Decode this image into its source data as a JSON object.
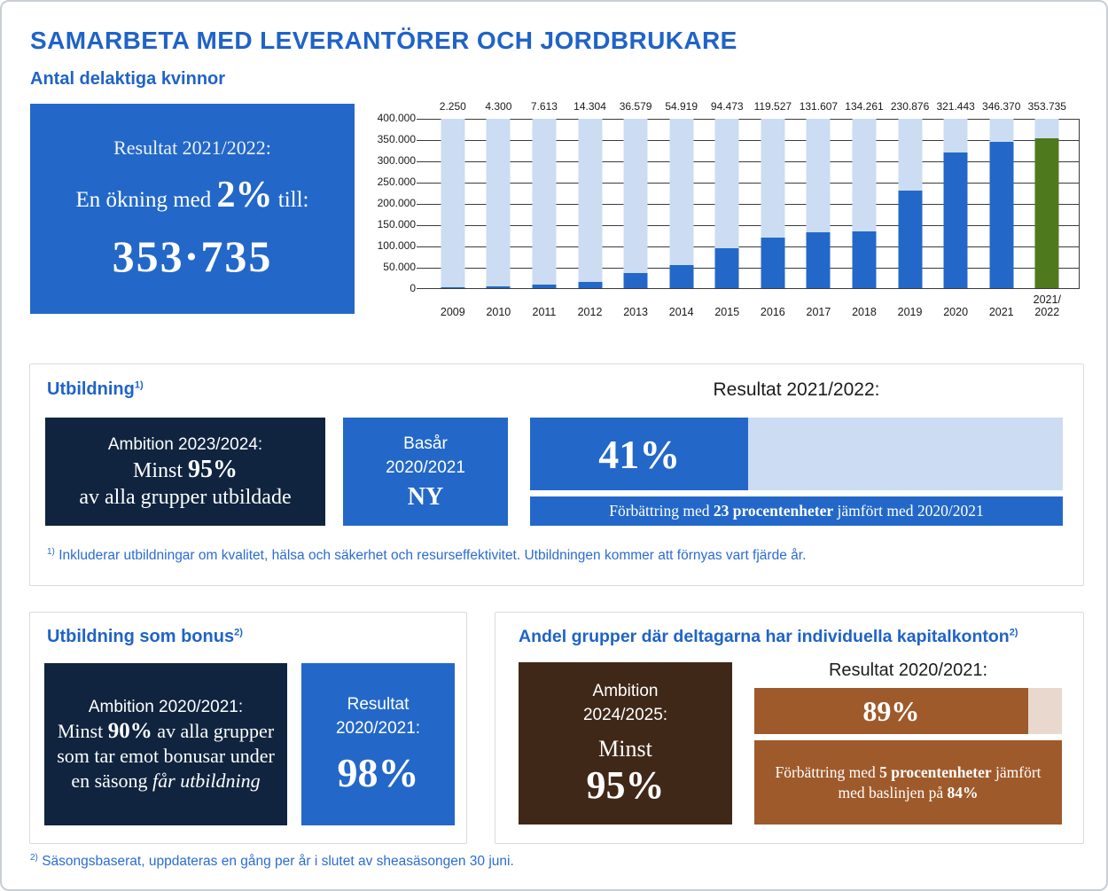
{
  "page": {
    "title": "SAMARBETA MED LEVERANTÖRER OCH JORDBRUKARE",
    "subtitle": "Antal delaktiga kvinnor",
    "footnote2_marker": "2)",
    "footnote2": "Säsongsbaserat, uppdateras en gång per år i slutet av sheasäsongen 30 juni."
  },
  "colors": {
    "primary_blue": "#2368C8",
    "light_blue": "#CBDCF3",
    "navy": "#10243F",
    "green": "#4E7A1D",
    "dark_brown": "#402818",
    "rust_brown": "#9F5A2B",
    "light_pink": "#E8D8CE",
    "heading_blue": "#1F63C8"
  },
  "kpi_box": {
    "line1": "Resultat 2021/2022:",
    "line2_pre": "En ökning med ",
    "line2_value": "2%",
    "line2_post": " till:",
    "total": "353·735"
  },
  "chart_data": {
    "type": "bar",
    "title": "Antal delaktiga kvinnor",
    "categories": [
      "2009",
      "2010",
      "2011",
      "2012",
      "2013",
      "2014",
      "2015",
      "2016",
      "2017",
      "2018",
      "2019",
      "2020",
      "2021",
      "2021/2022"
    ],
    "category_display": [
      "2009",
      "2010",
      "2011",
      "2012",
      "2013",
      "2014",
      "2015",
      "2016",
      "2017",
      "2018",
      "2019",
      "2020",
      "2021",
      "2021/\n2022"
    ],
    "values": [
      2250,
      4300,
      7613,
      14304,
      36579,
      54919,
      94473,
      119527,
      131607,
      134261,
      230876,
      321443,
      346370,
      353735
    ],
    "value_labels": [
      "2.250",
      "4.300",
      "7.613",
      "14.304",
      "36.579",
      "54.919",
      "94.473",
      "119.527",
      "131.607",
      "134.261",
      "230.876",
      "321.443",
      "346.370",
      "353.735"
    ],
    "xlabel": "",
    "ylabel": "",
    "ylim": [
      0,
      400000
    ],
    "yticks": [
      "400.000",
      "350.000",
      "300.000",
      "250.000",
      "200.000",
      "150.000",
      "100.000",
      "50.000",
      "0"
    ],
    "grid": true,
    "legend": "none",
    "bar_color": "#2368C8",
    "backdrop_color": "#CBDCF3",
    "highlight_index": 13,
    "highlight_color": "#4E7A1D"
  },
  "utbildning": {
    "header": "Utbildning",
    "header_sup": "1)",
    "ambition": {
      "line1": "Ambition 2023/2024:",
      "line2_pre": "Minst ",
      "line2_bold": "95%",
      "line3": "av alla grupper utbildade"
    },
    "basar": {
      "line1": "Basår",
      "line2": "2020/2021",
      "value": "NY"
    },
    "result_header": "Resultat 2021/2022:",
    "progress": {
      "percent": 41,
      "label": "41%"
    },
    "improvement": {
      "pre": "Förbättring med ",
      "bold": "23 procentenheter",
      "post": " jämfört med 2020/2021"
    },
    "footnote_marker": "1)",
    "footnote": "Inkluderar utbildningar om kvalitet, hälsa och säkerhet och resurseffektivitet. Utbildningen kommer att förnyas vart fjärde år."
  },
  "bonus": {
    "header": "Utbildning som bonus",
    "header_sup": "2)",
    "ambition": {
      "line1": "Ambition 2020/2021:",
      "pre": "Minst ",
      "bold": "90%",
      "mid": " av alla grupper som tar emot bonusar under en säsong ",
      "italic": "får utbildning"
    },
    "result": {
      "line1": "Resultat",
      "line2": "2020/2021:",
      "value": "98%"
    }
  },
  "kapitalkonton": {
    "header": "Andel grupper där deltagarna har individuella kapitalkonton",
    "header_sup": "2)",
    "ambition": {
      "line1": "Ambition",
      "line2": "2024/2025:",
      "line3": "Minst",
      "value": "95%"
    },
    "result_header": "Resultat 2020/2021:",
    "progress": {
      "percent": 89,
      "label": "89%"
    },
    "improvement": {
      "pre": "Förbättring med ",
      "bold1": "5 procent­enheter",
      "mid": " jämfört med baslinjen på ",
      "bold2": "84%"
    }
  }
}
